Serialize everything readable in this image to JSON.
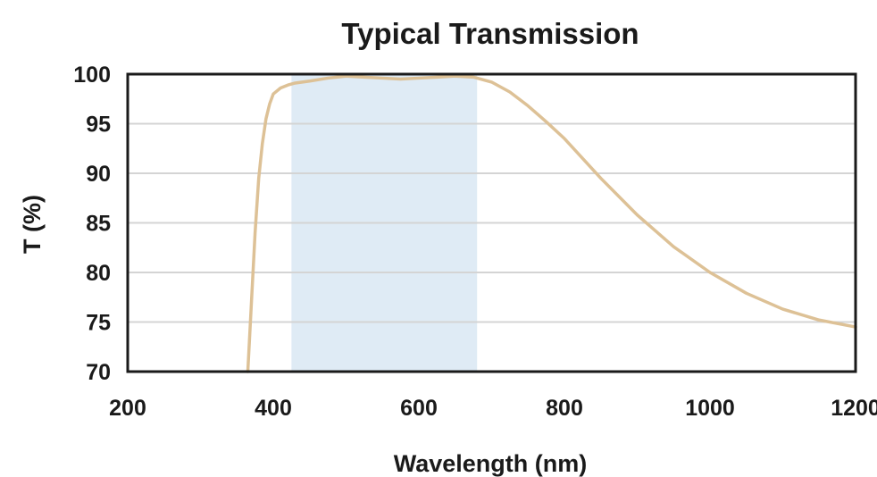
{
  "chart_data": {
    "type": "line",
    "title": "Typical Transmission",
    "xlabel": "Wavelength (nm)",
    "ylabel": "T (%)",
    "xlim": [
      200,
      1200
    ],
    "ylim": [
      70,
      100
    ],
    "x_ticks": [
      "200",
      "400",
      "600",
      "800",
      "1000",
      "1200"
    ],
    "y_ticks": [
      "70",
      "75",
      "80",
      "85",
      "90",
      "95",
      "100"
    ],
    "grid": true,
    "highlight_band": {
      "x_start": 425,
      "x_end": 680,
      "color": "#dfebf5"
    },
    "series": [
      {
        "color": "#ddc196",
        "x": [
          365,
          370,
          375,
          380,
          385,
          390,
          395,
          400,
          410,
          420,
          430,
          450,
          475,
          500,
          525,
          550,
          575,
          600,
          625,
          650,
          675,
          700,
          725,
          750,
          775,
          800,
          850,
          900,
          950,
          1000,
          1050,
          1100,
          1150,
          1200
        ],
        "y": [
          70,
          77,
          84,
          89.5,
          93,
          95.5,
          97,
          98,
          98.6,
          98.9,
          99.1,
          99.3,
          99.6,
          99.8,
          99.7,
          99.6,
          99.5,
          99.6,
          99.7,
          99.8,
          99.7,
          99.2,
          98.2,
          96.8,
          95.2,
          93.5,
          89.5,
          85.8,
          82.6,
          80.0,
          77.9,
          76.3,
          75.2,
          74.5
        ]
      }
    ]
  },
  "colors": {
    "axis": "#1a1a1a",
    "grid": "#d4d4d4",
    "band": "#dfebf5",
    "line": "#ddc196"
  }
}
